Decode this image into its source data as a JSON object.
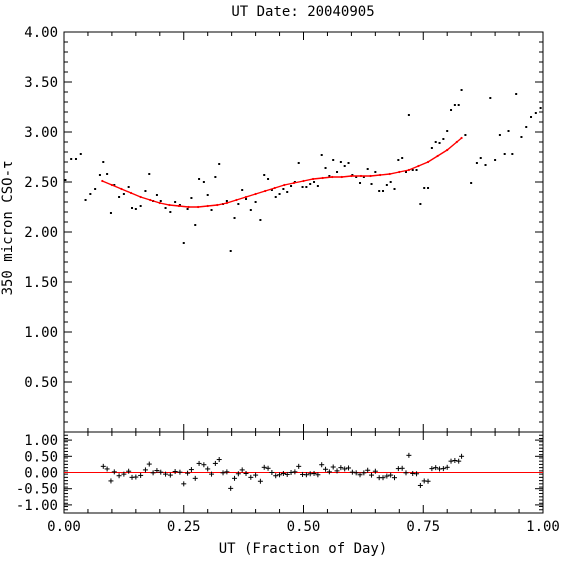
{
  "chart_data": {
    "title": "UT Date: 20040905",
    "xlabel": "UT (Fraction of Day)",
    "ylabel": "350 micron CSO-τ",
    "colors": {
      "fit": "#ff0000",
      "points": "#000000",
      "zero_line": "#ff0000"
    },
    "xlim": [
      0,
      1
    ],
    "x_ticks": [
      "0.00",
      "0.25",
      "0.50",
      "0.75",
      "1.00"
    ],
    "panels": [
      {
        "name": "main",
        "type": "scatter",
        "ylim": [
          0,
          4
        ],
        "y_ticks": [
          "0.50",
          "1.00",
          "1.50",
          "2.00",
          "2.50",
          "3.00",
          "3.50",
          "4.00"
        ],
        "points": [
          [
            0.003,
            2.52
          ],
          [
            0.015,
            2.73
          ],
          [
            0.025,
            2.73
          ],
          [
            0.035,
            2.78
          ],
          [
            0.045,
            2.32
          ],
          [
            0.055,
            2.38
          ],
          [
            0.065,
            2.43
          ],
          [
            0.075,
            2.57
          ],
          [
            0.082,
            2.7
          ],
          [
            0.09,
            2.58
          ],
          [
            0.098,
            2.19
          ],
          [
            0.105,
            2.47
          ],
          [
            0.115,
            2.35
          ],
          [
            0.125,
            2.38
          ],
          [
            0.135,
            2.45
          ],
          [
            0.142,
            2.24
          ],
          [
            0.15,
            2.23
          ],
          [
            0.16,
            2.26
          ],
          [
            0.17,
            2.41
          ],
          [
            0.178,
            2.58
          ],
          [
            0.186,
            2.31
          ],
          [
            0.194,
            2.37
          ],
          [
            0.202,
            2.31
          ],
          [
            0.212,
            2.24
          ],
          [
            0.222,
            2.2
          ],
          [
            0.232,
            2.3
          ],
          [
            0.242,
            2.27
          ],
          [
            0.25,
            1.89
          ],
          [
            0.258,
            2.23
          ],
          [
            0.266,
            2.34
          ],
          [
            0.274,
            2.07
          ],
          [
            0.282,
            2.53
          ],
          [
            0.292,
            2.5
          ],
          [
            0.3,
            2.37
          ],
          [
            0.308,
            2.22
          ],
          [
            0.316,
            2.55
          ],
          [
            0.324,
            2.68
          ],
          [
            0.332,
            2.28
          ],
          [
            0.34,
            2.31
          ],
          [
            0.348,
            1.81
          ],
          [
            0.356,
            2.14
          ],
          [
            0.364,
            2.28
          ],
          [
            0.372,
            2.42
          ],
          [
            0.38,
            2.33
          ],
          [
            0.39,
            2.22
          ],
          [
            0.4,
            2.3
          ],
          [
            0.41,
            2.12
          ],
          [
            0.418,
            2.57
          ],
          [
            0.426,
            2.53
          ],
          [
            0.434,
            2.42
          ],
          [
            0.442,
            2.35
          ],
          [
            0.45,
            2.38
          ],
          [
            0.458,
            2.43
          ],
          [
            0.466,
            2.4
          ],
          [
            0.474,
            2.46
          ],
          [
            0.482,
            2.5
          ],
          [
            0.49,
            2.69
          ],
          [
            0.498,
            2.45
          ],
          [
            0.506,
            2.45
          ],
          [
            0.514,
            2.48
          ],
          [
            0.522,
            2.5
          ],
          [
            0.53,
            2.46
          ],
          [
            0.538,
            2.77
          ],
          [
            0.546,
            2.64
          ],
          [
            0.554,
            2.56
          ],
          [
            0.562,
            2.72
          ],
          [
            0.57,
            2.6
          ],
          [
            0.578,
            2.7
          ],
          [
            0.586,
            2.66
          ],
          [
            0.594,
            2.69
          ],
          [
            0.602,
            2.57
          ],
          [
            0.61,
            2.55
          ],
          [
            0.618,
            2.49
          ],
          [
            0.626,
            2.55
          ],
          [
            0.634,
            2.63
          ],
          [
            0.642,
            2.48
          ],
          [
            0.65,
            2.6
          ],
          [
            0.658,
            2.41
          ],
          [
            0.666,
            2.41
          ],
          [
            0.674,
            2.47
          ],
          [
            0.682,
            2.5
          ],
          [
            0.69,
            2.43
          ],
          [
            0.698,
            2.72
          ],
          [
            0.706,
            2.74
          ],
          [
            0.714,
            2.6
          ],
          [
            0.72,
            3.17
          ],
          [
            0.728,
            2.62
          ],
          [
            0.736,
            2.62
          ],
          [
            0.744,
            2.28
          ],
          [
            0.752,
            2.44
          ],
          [
            0.76,
            2.44
          ],
          [
            0.768,
            2.84
          ],
          [
            0.776,
            2.9
          ],
          [
            0.784,
            2.89
          ],
          [
            0.792,
            2.93
          ],
          [
            0.8,
            3.01
          ],
          [
            0.808,
            3.22
          ],
          [
            0.816,
            3.27
          ],
          [
            0.824,
            3.27
          ],
          [
            0.83,
            3.42
          ],
          [
            0.838,
            2.97
          ],
          [
            0.85,
            2.49
          ],
          [
            0.862,
            2.69
          ],
          [
            0.87,
            2.74
          ],
          [
            0.88,
            2.67
          ],
          [
            0.89,
            3.34
          ],
          [
            0.9,
            2.72
          ],
          [
            0.91,
            2.97
          ],
          [
            0.92,
            2.78
          ],
          [
            0.928,
            3.01
          ],
          [
            0.936,
            2.78
          ],
          [
            0.944,
            3.38
          ],
          [
            0.955,
            2.95
          ],
          [
            0.965,
            3.05
          ],
          [
            0.975,
            3.15
          ],
          [
            0.985,
            3.19
          ],
          [
            0.995,
            3.24
          ]
        ],
        "fit": {
          "x": [
            0.08,
            0.1,
            0.12,
            0.14,
            0.16,
            0.18,
            0.2,
            0.22,
            0.24,
            0.26,
            0.28,
            0.3,
            0.32,
            0.34,
            0.36,
            0.38,
            0.4,
            0.42,
            0.44,
            0.46,
            0.48,
            0.5,
            0.52,
            0.54,
            0.56,
            0.58,
            0.6,
            0.62,
            0.64,
            0.66,
            0.68,
            0.7,
            0.72,
            0.74,
            0.76,
            0.78,
            0.8,
            0.82,
            0.83
          ],
          "y": [
            2.51,
            2.47,
            2.43,
            2.39,
            2.35,
            2.32,
            2.29,
            2.27,
            2.26,
            2.25,
            2.25,
            2.26,
            2.27,
            2.29,
            2.32,
            2.35,
            2.38,
            2.41,
            2.44,
            2.47,
            2.49,
            2.51,
            2.53,
            2.54,
            2.55,
            2.55,
            2.56,
            2.56,
            2.56,
            2.57,
            2.58,
            2.6,
            2.62,
            2.66,
            2.7,
            2.76,
            2.82,
            2.9,
            2.94
          ]
        }
      },
      {
        "name": "residuals",
        "type": "scatter",
        "ylim": [
          -1.25,
          1.25
        ],
        "y_ticks": [
          "-1.00",
          "-0.50",
          "0.00",
          "0.50",
          "1.00"
        ],
        "points": [
          [
            0.082,
            0.19
          ],
          [
            0.09,
            0.11
          ],
          [
            0.098,
            -0.26
          ],
          [
            0.105,
            0.02
          ],
          [
            0.115,
            -0.1
          ],
          [
            0.125,
            -0.05
          ],
          [
            0.135,
            0.04
          ],
          [
            0.142,
            -0.15
          ],
          [
            0.15,
            -0.14
          ],
          [
            0.16,
            -0.09
          ],
          [
            0.17,
            0.08
          ],
          [
            0.178,
            0.26
          ],
          [
            0.186,
            -0.01
          ],
          [
            0.194,
            0.06
          ],
          [
            0.202,
            0.01
          ],
          [
            0.212,
            -0.05
          ],
          [
            0.222,
            -0.08
          ],
          [
            0.232,
            0.03
          ],
          [
            0.242,
            0.01
          ],
          [
            0.25,
            -0.35
          ],
          [
            0.258,
            -0.02
          ],
          [
            0.266,
            0.09
          ],
          [
            0.274,
            -0.18
          ],
          [
            0.282,
            0.28
          ],
          [
            0.292,
            0.24
          ],
          [
            0.3,
            0.11
          ],
          [
            0.308,
            -0.05
          ],
          [
            0.316,
            0.28
          ],
          [
            0.324,
            0.4
          ],
          [
            0.332,
            -0.01
          ],
          [
            0.34,
            0.02
          ],
          [
            0.348,
            -0.49
          ],
          [
            0.356,
            -0.18
          ],
          [
            0.364,
            -0.04
          ],
          [
            0.372,
            0.08
          ],
          [
            0.38,
            -0.03
          ],
          [
            0.39,
            -0.15
          ],
          [
            0.4,
            -0.08
          ],
          [
            0.41,
            -0.27
          ],
          [
            0.418,
            0.16
          ],
          [
            0.426,
            0.13
          ],
          [
            0.434,
            0.0
          ],
          [
            0.442,
            -0.1
          ],
          [
            0.45,
            -0.07
          ],
          [
            0.458,
            -0.03
          ],
          [
            0.466,
            -0.06
          ],
          [
            0.474,
            0.0
          ],
          [
            0.482,
            0.02
          ],
          [
            0.49,
            0.19
          ],
          [
            0.498,
            -0.06
          ],
          [
            0.506,
            -0.07
          ],
          [
            0.514,
            -0.04
          ],
          [
            0.522,
            -0.03
          ],
          [
            0.53,
            -0.07
          ],
          [
            0.538,
            0.24
          ],
          [
            0.546,
            0.1
          ],
          [
            0.554,
            0.02
          ],
          [
            0.562,
            0.17
          ],
          [
            0.57,
            0.05
          ],
          [
            0.578,
            0.15
          ],
          [
            0.586,
            0.11
          ],
          [
            0.594,
            0.14
          ],
          [
            0.602,
            0.01
          ],
          [
            0.61,
            -0.01
          ],
          [
            0.618,
            -0.07
          ],
          [
            0.626,
            -0.01
          ],
          [
            0.634,
            0.07
          ],
          [
            0.642,
            -0.08
          ],
          [
            0.65,
            0.04
          ],
          [
            0.658,
            -0.16
          ],
          [
            0.666,
            -0.16
          ],
          [
            0.674,
            -0.11
          ],
          [
            0.682,
            -0.08
          ],
          [
            0.69,
            -0.16
          ],
          [
            0.698,
            0.12
          ],
          [
            0.706,
            0.13
          ],
          [
            0.714,
            -0.01
          ],
          [
            0.72,
            0.53
          ],
          [
            0.728,
            -0.03
          ],
          [
            0.736,
            -0.04
          ],
          [
            0.744,
            -0.4
          ],
          [
            0.752,
            -0.26
          ],
          [
            0.76,
            -0.27
          ],
          [
            0.768,
            0.12
          ],
          [
            0.776,
            0.15
          ],
          [
            0.784,
            0.11
          ],
          [
            0.792,
            0.12
          ],
          [
            0.8,
            0.16
          ],
          [
            0.808,
            0.35
          ],
          [
            0.816,
            0.37
          ],
          [
            0.824,
            0.35
          ],
          [
            0.83,
            0.5
          ]
        ],
        "zero_line": 0
      }
    ]
  }
}
